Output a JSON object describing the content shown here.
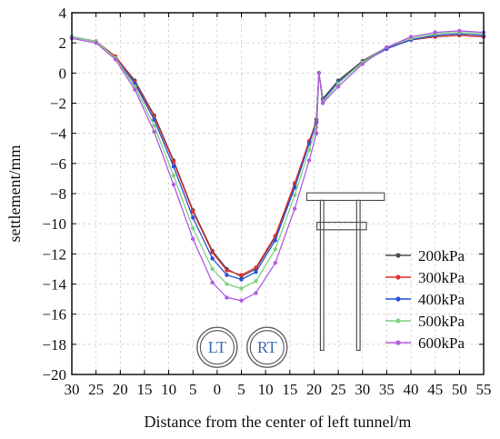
{
  "chart_data": {
    "type": "line",
    "xlabel": "Distance from the center of left tunnel/m",
    "ylabel": "settlement/mm",
    "x_ticks": [
      -30,
      -25,
      -20,
      -15,
      -10,
      -5,
      0,
      5,
      10,
      15,
      20,
      25,
      30,
      35,
      40,
      45,
      50,
      55
    ],
    "x_tick_labels": [
      "30",
      "25",
      "20",
      "15",
      "10",
      "5",
      "0",
      "5",
      "10",
      "15",
      "20",
      "25",
      "30",
      "35",
      "40",
      "45",
      "50",
      "55"
    ],
    "y_ticks": [
      4,
      2,
      0,
      -2,
      -4,
      -6,
      -8,
      -10,
      -12,
      -14,
      -16,
      -18,
      -20
    ],
    "y_tick_labels": [
      "4",
      "2",
      "0",
      "−2",
      "−4",
      "−6",
      "−8",
      "−10",
      "−12",
      "−14",
      "−16",
      "−18",
      "−20"
    ],
    "xlim": [
      -30,
      55
    ],
    "ylim": [
      -20,
      4
    ],
    "grid": true,
    "legend_position": "bottom-right",
    "annotations": {
      "left_tunnel": "LT",
      "right_tunnel": "RT"
    },
    "series": [
      {
        "name": "200kPa",
        "color": "#4d4d4d",
        "points": [
          [
            -30,
            2.4
          ],
          [
            -25,
            2.1
          ],
          [
            -21,
            1.1
          ],
          [
            -17,
            -0.5
          ],
          [
            -13,
            -2.8
          ],
          [
            -9,
            -5.8
          ],
          [
            -5,
            -9.1
          ],
          [
            -1,
            -11.8
          ],
          [
            2,
            -13.0
          ],
          [
            5,
            -13.5
          ],
          [
            8,
            -13.0
          ],
          [
            12,
            -10.9
          ],
          [
            16,
            -7.4
          ],
          [
            19,
            -4.6
          ],
          [
            20.5,
            -3.1
          ],
          [
            21,
            0.0
          ],
          [
            21.8,
            -1.7
          ],
          [
            25,
            -0.5
          ],
          [
            30,
            0.8
          ],
          [
            35,
            1.7
          ],
          [
            40,
            2.2
          ],
          [
            45,
            2.4
          ],
          [
            50,
            2.5
          ],
          [
            55,
            2.4
          ]
        ]
      },
      {
        "name": "300kPa",
        "color": "#e03030",
        "points": [
          [
            -30,
            2.4
          ],
          [
            -25,
            2.1
          ],
          [
            -21,
            1.1
          ],
          [
            -17,
            -0.6
          ],
          [
            -13,
            -2.9
          ],
          [
            -9,
            -5.9
          ],
          [
            -5,
            -9.2
          ],
          [
            -1,
            -11.9
          ],
          [
            2,
            -13.1
          ],
          [
            5,
            -13.4
          ],
          [
            8,
            -12.9
          ],
          [
            12,
            -10.8
          ],
          [
            16,
            -7.3
          ],
          [
            19,
            -4.5
          ],
          [
            20.5,
            -3.2
          ],
          [
            21,
            0.0
          ],
          [
            21.8,
            -1.8
          ],
          [
            25,
            -0.6
          ],
          [
            30,
            0.7
          ],
          [
            35,
            1.7
          ],
          [
            40,
            2.2
          ],
          [
            45,
            2.4
          ],
          [
            50,
            2.5
          ],
          [
            55,
            2.4
          ]
        ]
      },
      {
        "name": "400kPa",
        "color": "#2a52d6",
        "points": [
          [
            -30,
            2.4
          ],
          [
            -25,
            2.1
          ],
          [
            -21,
            1.0
          ],
          [
            -17,
            -0.7
          ],
          [
            -13,
            -3.1
          ],
          [
            -9,
            -6.2
          ],
          [
            -5,
            -9.6
          ],
          [
            -1,
            -12.3
          ],
          [
            2,
            -13.4
          ],
          [
            5,
            -13.7
          ],
          [
            8,
            -13.2
          ],
          [
            12,
            -11.1
          ],
          [
            16,
            -7.6
          ],
          [
            19,
            -4.7
          ],
          [
            20.5,
            -3.3
          ],
          [
            21,
            0.0
          ],
          [
            21.8,
            -1.8
          ],
          [
            25,
            -0.6
          ],
          [
            30,
            0.7
          ],
          [
            35,
            1.6
          ],
          [
            40,
            2.2
          ],
          [
            45,
            2.5
          ],
          [
            50,
            2.6
          ],
          [
            55,
            2.5
          ]
        ]
      },
      {
        "name": "500kPa",
        "color": "#7fd37f",
        "points": [
          [
            -30,
            2.4
          ],
          [
            -25,
            2.1
          ],
          [
            -21,
            1.0
          ],
          [
            -17,
            -0.9
          ],
          [
            -13,
            -3.5
          ],
          [
            -9,
            -6.8
          ],
          [
            -5,
            -10.3
          ],
          [
            -1,
            -13.0
          ],
          [
            2,
            -14.0
          ],
          [
            5,
            -14.3
          ],
          [
            8,
            -13.8
          ],
          [
            12,
            -11.7
          ],
          [
            16,
            -8.1
          ],
          [
            19,
            -5.1
          ],
          [
            20.5,
            -3.6
          ],
          [
            21,
            0.0
          ],
          [
            21.8,
            -1.9
          ],
          [
            25,
            -0.7
          ],
          [
            30,
            0.7
          ],
          [
            35,
            1.7
          ],
          [
            40,
            2.3
          ],
          [
            45,
            2.6
          ],
          [
            50,
            2.7
          ],
          [
            55,
            2.6
          ]
        ]
      },
      {
        "name": "600kPa",
        "color": "#b05de0",
        "points": [
          [
            -30,
            2.3
          ],
          [
            -25,
            2.0
          ],
          [
            -21,
            0.9
          ],
          [
            -17,
            -1.1
          ],
          [
            -13,
            -3.9
          ],
          [
            -9,
            -7.4
          ],
          [
            -5,
            -11.0
          ],
          [
            -1,
            -13.9
          ],
          [
            2,
            -14.9
          ],
          [
            5,
            -15.1
          ],
          [
            8,
            -14.6
          ],
          [
            12,
            -12.6
          ],
          [
            16,
            -9.0
          ],
          [
            19,
            -5.8
          ],
          [
            20.5,
            -4.0
          ],
          [
            21,
            0.0
          ],
          [
            21.8,
            -2.0
          ],
          [
            25,
            -0.9
          ],
          [
            30,
            0.6
          ],
          [
            35,
            1.7
          ],
          [
            40,
            2.4
          ],
          [
            45,
            2.7
          ],
          [
            50,
            2.8
          ],
          [
            55,
            2.7
          ]
        ]
      }
    ]
  }
}
